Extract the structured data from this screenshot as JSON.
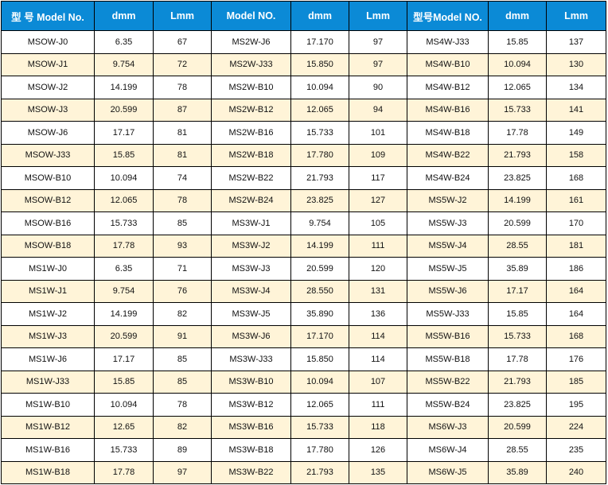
{
  "colors": {
    "header_bg": "#0b8ad6",
    "alt_row_bg": "#fff4d8"
  },
  "headers": [
    "型 号 Model No.",
    "dmm",
    "Lmm",
    "Model  NO.",
    "dmm",
    "Lmm",
    "型号Model  NO.",
    "dmm",
    "Lmm"
  ],
  "rows": [
    [
      "MSOW-J0",
      "6.35",
      "67",
      "MS2W-J6",
      "17.170",
      "97",
      "MS4W-J33",
      "15.85",
      "137"
    ],
    [
      "MSOW-J1",
      "9.754",
      "72",
      "MS2W-J33",
      "15.850",
      "97",
      "MS4W-B10",
      "10.094",
      "130"
    ],
    [
      "MSOW-J2",
      "14.199",
      "78",
      "MS2W-B10",
      "10.094",
      "90",
      "MS4W-B12",
      "12.065",
      "134"
    ],
    [
      "MSOW-J3",
      "20.599",
      "87",
      "MS2W-B12",
      "12.065",
      "94",
      "MS4W-B16",
      "15.733",
      "141"
    ],
    [
      "MSOW-J6",
      "17.17",
      "81",
      "MS2W-B16",
      "15.733",
      "101",
      "MS4W-B18",
      "17.78",
      "149"
    ],
    [
      "MSOW-J33",
      "15.85",
      "81",
      "MS2W-B18",
      "17.780",
      "109",
      "MS4W-B22",
      "21.793",
      "158"
    ],
    [
      "MSOW-B10",
      "10.094",
      "74",
      "MS2W-B22",
      "21.793",
      "117",
      "MS4W-B24",
      "23.825",
      "168"
    ],
    [
      "MSOW-B12",
      "12.065",
      "78",
      "MS2W-B24",
      "23.825",
      "127",
      "MS5W-J2",
      "14.199",
      "161"
    ],
    [
      "MSOW-B16",
      "15.733",
      "85",
      "MS3W-J1",
      "9.754",
      "105",
      "MS5W-J3",
      "20.599",
      "170"
    ],
    [
      "MSOW-B18",
      "17.78",
      "93",
      "MS3W-J2",
      "14.199",
      "111",
      "MS5W-J4",
      "28.55",
      "181"
    ],
    [
      "MS1W-J0",
      "6.35",
      "71",
      "MS3W-J3",
      "20.599",
      "120",
      "MS5W-J5",
      "35.89",
      "186"
    ],
    [
      "MS1W-J1",
      "9.754",
      "76",
      "MS3W-J4",
      "28.550",
      "131",
      "MS5W-J6",
      "17.17",
      "164"
    ],
    [
      "MS1W-J2",
      "14.199",
      "82",
      "MS3W-J5",
      "35.890",
      "136",
      "MS5W-J33",
      "15.85",
      "164"
    ],
    [
      "MS1W-J3",
      "20.599",
      "91",
      "MS3W-J6",
      "17.170",
      "114",
      "MS5W-B16",
      "15.733",
      "168"
    ],
    [
      "MS1W-J6",
      "17.17",
      "85",
      "MS3W-J33",
      "15.850",
      "114",
      "MS5W-B18",
      "17.78",
      "176"
    ],
    [
      "MS1W-J33",
      "15.85",
      "85",
      "MS3W-B10",
      "10.094",
      "107",
      "MS5W-B22",
      "21.793",
      "185"
    ],
    [
      "MS1W-B10",
      "10.094",
      "78",
      "MS3W-B12",
      "12.065",
      "111",
      "MS5W-B24",
      "23.825",
      "195"
    ],
    [
      "MS1W-B12",
      "12.65",
      "82",
      "MS3W-B16",
      "15.733",
      "118",
      "MS6W-J3",
      "20.599",
      "224"
    ],
    [
      "MS1W-B16",
      "15.733",
      "89",
      "MS3W-B18",
      "17.780",
      "126",
      "MS6W-J4",
      "28.55",
      "235"
    ],
    [
      "MS1W-B18",
      "17.78",
      "97",
      "MS3W-B22",
      "21.793",
      "135",
      "MS6W-J5",
      "35.89",
      "240"
    ]
  ]
}
